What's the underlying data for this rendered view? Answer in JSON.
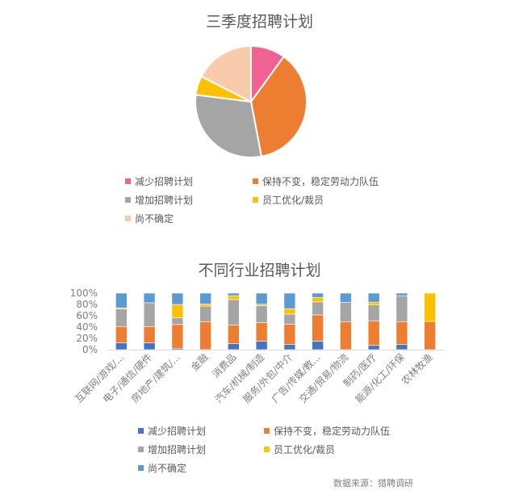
{
  "colors": {
    "pie": {
      "reduce": "#F06292",
      "keep": "#ED7D31",
      "increase": "#A5A5A5",
      "layoff": "#FFC000",
      "uncertain": "#F8CBAD"
    },
    "bar": {
      "reduce": "#4472C4",
      "keep": "#ED7D31",
      "increase": "#A5A5A5",
      "layoff": "#FFC000",
      "uncertain": "#5B9BD5"
    }
  },
  "pie_chart": {
    "title": "三季度招聘计划",
    "legend": [
      {
        "key": "reduce",
        "label": "减少招聘计划"
      },
      {
        "key": "keep",
        "label": "保持不变，稳定劳动力队伍"
      },
      {
        "key": "increase",
        "label": "增加招聘计划"
      },
      {
        "key": "layoff",
        "label": "员工优化/裁员"
      },
      {
        "key": "uncertain",
        "label": "尚不确定"
      }
    ]
  },
  "bar_chart": {
    "title": "不同行业招聘计划",
    "legend": [
      {
        "key": "reduce",
        "label": "减少招聘计划"
      },
      {
        "key": "keep",
        "label": "保持不变，稳定劳动力队伍"
      },
      {
        "key": "increase",
        "label": "增加招聘计划"
      },
      {
        "key": "layoff",
        "label": "员工优化/裁员"
      },
      {
        "key": "uncertain",
        "label": "尚不确定"
      }
    ],
    "source": "数据来源：猎聘调研"
  },
  "chart_data": [
    {
      "type": "pie",
      "title": "三季度招聘计划",
      "categories": [
        "减少招聘计划",
        "保持不变，稳定劳动力队伍",
        "增加招聘计划",
        "员工优化/裁员",
        "尚不确定"
      ],
      "values": [
        10,
        37,
        30,
        5.5,
        17.5
      ],
      "unit": "%",
      "legend_position": "bottom"
    },
    {
      "type": "bar",
      "stacked": true,
      "percent_stacked": true,
      "title": "不同行业招聘计划",
      "categories": [
        "互联网/游戏/...",
        "电子/通信/硬件",
        "房地产/建筑/...",
        "金融",
        "消费品",
        "汽车/机械/制造",
        "服务/外包/中介",
        "广告/传媒/教...",
        "交通/贸易/物流",
        "制药/医疗",
        "能源/化工/环保",
        "农林牧渔"
      ],
      "series": [
        {
          "name": "减少招聘计划",
          "values": [
            12,
            12,
            2.5,
            0,
            10.5,
            15,
            9,
            15,
            0,
            7.5,
            9,
            0
          ]
        },
        {
          "name": "保持不变，稳定劳动力队伍",
          "values": [
            29,
            29,
            42,
            49.5,
            33,
            33,
            36,
            46.5,
            49.5,
            43,
            40.5,
            50
          ]
        },
        {
          "name": "增加招聘计划",
          "values": [
            31,
            42,
            12,
            27.5,
            45,
            30,
            18,
            23,
            34,
            28.5,
            46,
            0
          ]
        },
        {
          "name": "员工优化/裁员",
          "values": [
            2,
            0,
            23.5,
            4,
            7,
            2.5,
            9.5,
            8,
            0,
            5,
            0,
            50
          ]
        },
        {
          "name": "尚不确定",
          "values": [
            26,
            17,
            20,
            19,
            4.5,
            19.5,
            27.5,
            7.5,
            16.5,
            16,
            4.5,
            0
          ]
        }
      ],
      "xlabel": "",
      "ylabel": "",
      "yticks": [
        "0%",
        "20%",
        "40%",
        "60%",
        "80%",
        "100%"
      ],
      "ylim": [
        0,
        100
      ],
      "grid": false,
      "legend_position": "bottom",
      "source": "数据来源：猎聘调研"
    }
  ]
}
